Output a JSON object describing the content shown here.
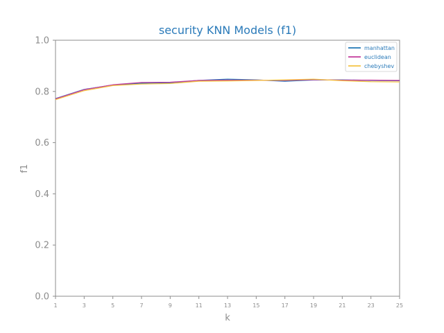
{
  "chart_data": {
    "type": "line",
    "title": "security KNN Models (f1)",
    "xlabel": "k",
    "ylabel": "f1",
    "xlim": [
      1,
      25
    ],
    "ylim": [
      0.0,
      1.0
    ],
    "x": [
      1,
      3,
      5,
      7,
      9,
      11,
      13,
      15,
      17,
      19,
      21,
      23,
      25
    ],
    "xticks": [
      "1",
      "3",
      "5",
      "7",
      "9",
      "11",
      "13",
      "15",
      "17",
      "19",
      "21",
      "23",
      "25"
    ],
    "yticks": [
      "0.0",
      "0.2",
      "0.4",
      "0.6",
      "0.8",
      "1.0"
    ],
    "ytick_values": [
      0.0,
      0.2,
      0.4,
      0.6,
      0.8,
      1.0
    ],
    "grid": false,
    "legend_position": "top-right",
    "series": [
      {
        "name": "manhattan",
        "color": "#1f77b4",
        "values": [
          0.772,
          0.808,
          0.825,
          0.832,
          0.834,
          0.843,
          0.848,
          0.845,
          0.84,
          0.845,
          0.845,
          0.843,
          0.842
        ]
      },
      {
        "name": "euclidean",
        "color": "#c2399b",
        "values": [
          0.771,
          0.807,
          0.826,
          0.835,
          0.836,
          0.843,
          0.844,
          0.844,
          0.843,
          0.846,
          0.844,
          0.844,
          0.843
        ]
      },
      {
        "name": "chebyshev",
        "color": "#f5c242",
        "values": [
          0.768,
          0.803,
          0.823,
          0.829,
          0.831,
          0.84,
          0.841,
          0.843,
          0.845,
          0.848,
          0.842,
          0.838,
          0.837
        ]
      }
    ]
  },
  "colors": {
    "title": "#2a7ab9",
    "axis": "#8c8c8c",
    "tick_text": "#8c8c8c"
  }
}
